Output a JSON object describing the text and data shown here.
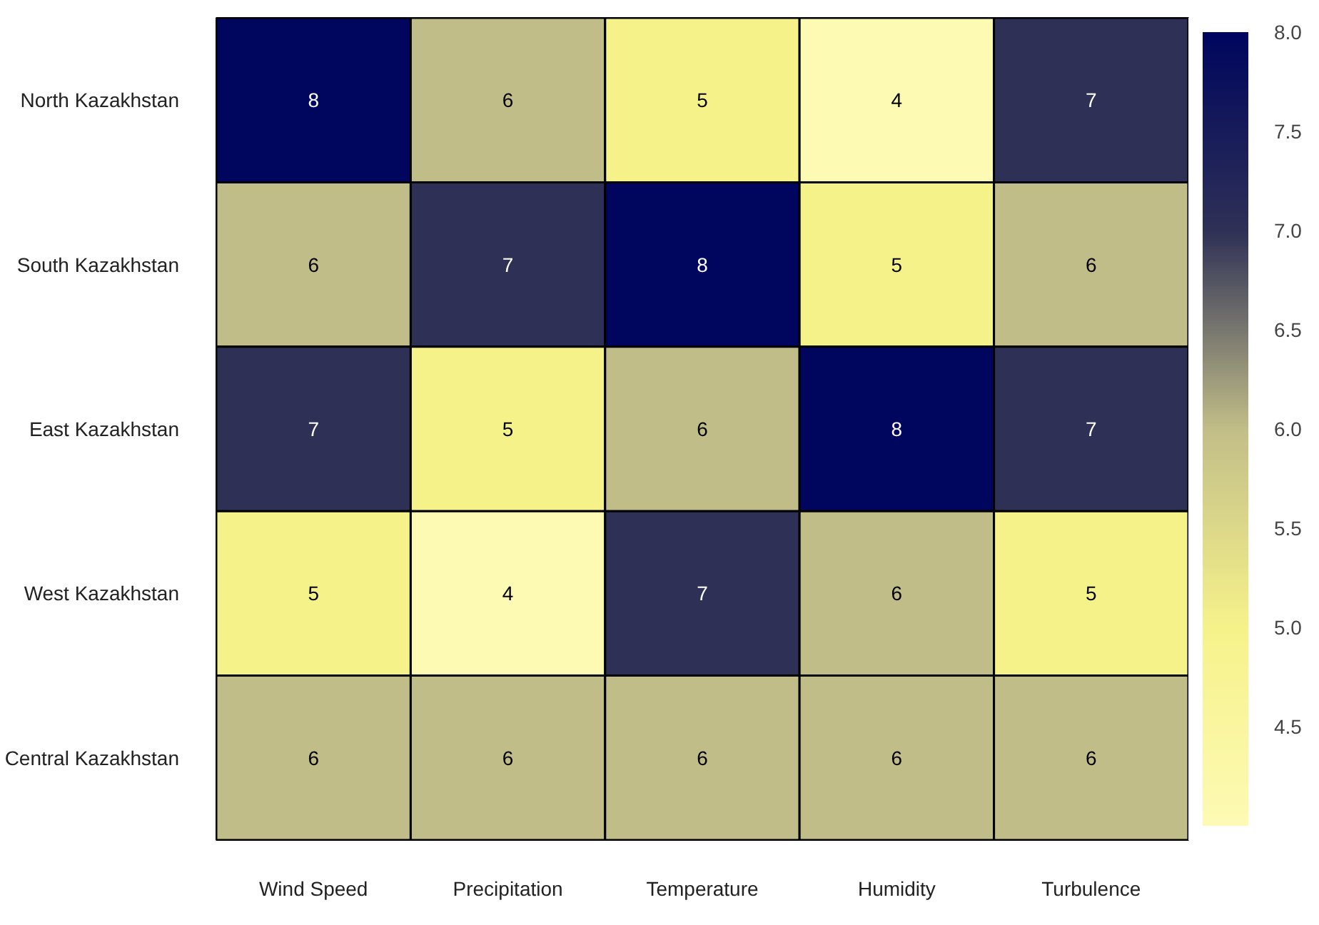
{
  "chart_data": {
    "type": "heatmap",
    "categories": [
      "Wind Speed",
      "Precipitation",
      "Temperature",
      "Humidity",
      "Turbulence"
    ],
    "y_categories": [
      "North Kazakhstan",
      "South Kazakhstan",
      "East Kazakhstan",
      "West Kazakhstan",
      "Central Kazakhstan"
    ],
    "cells": [
      [
        8,
        6,
        5,
        4,
        7
      ],
      [
        6,
        7,
        8,
        5,
        6
      ],
      [
        7,
        5,
        6,
        8,
        7
      ],
      [
        5,
        4,
        7,
        6,
        5
      ],
      [
        6,
        6,
        6,
        6,
        6
      ]
    ],
    "data_labels": true,
    "clim": [
      4.0,
      8.0
    ],
    "cticks": [
      {
        "value": 4.5,
        "label": "4.5"
      },
      {
        "value": 5,
        "label": "5.0"
      },
      {
        "value": 5.5,
        "label": "5.5"
      },
      {
        "value": 6,
        "label": "6.0"
      },
      {
        "value": 6.5,
        "label": "6.5"
      },
      {
        "value": 7,
        "label": "7.0"
      },
      {
        "value": 7.5,
        "label": "7.5"
      },
      {
        "value": 8,
        "label": "8.0"
      }
    ]
  }
}
